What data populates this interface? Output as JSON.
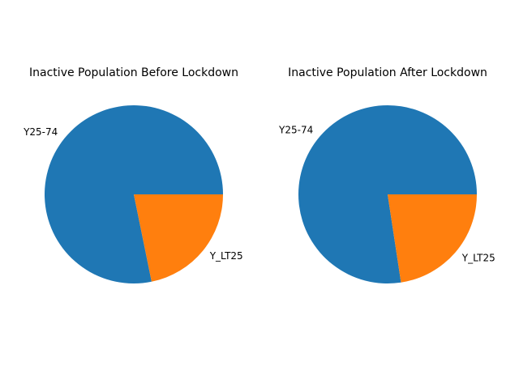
{
  "chart_data": [
    {
      "type": "pie",
      "title": "Inactive Population Before Lockdown",
      "labels": [
        "Y25-74",
        "Y_LT25"
      ],
      "values": [
        78.2,
        21.8
      ],
      "colors": [
        "#1f77b4",
        "#ff7f0e"
      ],
      "start_angle_deg": 0,
      "direction": "counterclockwise"
    },
    {
      "type": "pie",
      "title": "Inactive Population After Lockdown",
      "labels": [
        "Y25-74",
        "Y_LT25"
      ],
      "values": [
        77.4,
        22.6
      ],
      "colors": [
        "#1f77b4",
        "#ff7f0e"
      ],
      "start_angle_deg": 0,
      "direction": "counterclockwise"
    }
  ]
}
